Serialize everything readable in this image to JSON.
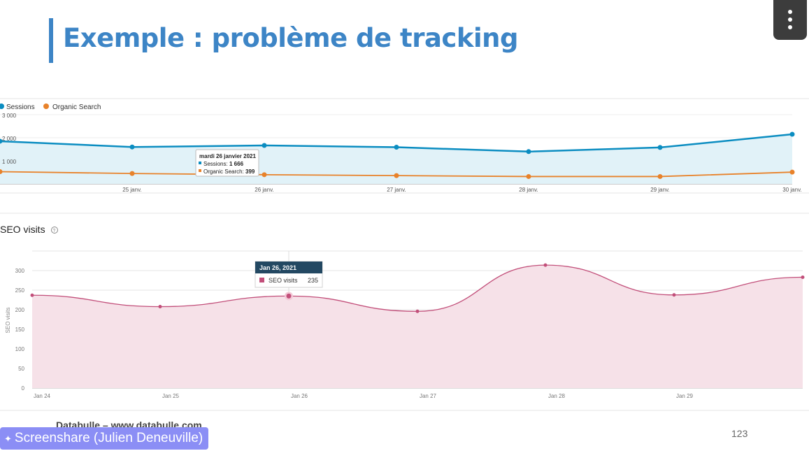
{
  "slide": {
    "title": "Exemple : problème de tracking",
    "footer": "Databulle – www.databulle.com",
    "page_number": "123"
  },
  "screenshare": {
    "label": "Screenshare (Julien Deneuville)",
    "icon": "sparkle-icon"
  },
  "colors": {
    "title": "#3d85c6",
    "sessions": "#0b8dc1",
    "organic": "#e8822a",
    "seo": "#c24f7a"
  },
  "chart_data": [
    {
      "type": "line",
      "legend": [
        "Sessions",
        "Organic Search"
      ],
      "x_tick_labels": [
        "25 janv.",
        "26 janv.",
        "27 janv.",
        "28 janv.",
        "29 janv.",
        "30 janv."
      ],
      "y_tick_labels": [
        "3 000",
        "2 000",
        "1 000"
      ],
      "ylim": [
        0,
        3000
      ],
      "series": [
        {
          "name": "Sessions",
          "x": [
            "24 janv.",
            "25 janv.",
            "26 janv.",
            "27 janv.",
            "28 janv.",
            "29 janv.",
            "30 janv."
          ],
          "values": [
            1850,
            1600,
            1666,
            1590,
            1400,
            1580,
            2150
          ],
          "area": true
        },
        {
          "name": "Organic Search",
          "x": [
            "24 janv.",
            "25 janv.",
            "26 janv.",
            "27 janv.",
            "28 janv.",
            "29 janv.",
            "30 janv."
          ],
          "values": [
            530,
            450,
            399,
            360,
            320,
            320,
            510
          ],
          "area": false
        }
      ],
      "tooltip": {
        "date": "mardi 26 janvier 2021",
        "lines": [
          {
            "label": "Sessions:",
            "value": "1 666"
          },
          {
            "label": "Organic Search:",
            "value": "399"
          }
        ]
      }
    },
    {
      "type": "area",
      "title": "SEO visits",
      "ylabel": "SEO visits",
      "x_tick_labels": [
        "Jan 24",
        "Jan 25",
        "Jan 26",
        "Jan 27",
        "Jan 28",
        "Jan 29"
      ],
      "y_tick_labels": [
        "300",
        "250",
        "200",
        "150",
        "100",
        "50",
        "0"
      ],
      "ylim": [
        0,
        350
      ],
      "series": [
        {
          "name": "SEO visits",
          "x": [
            "Jan 24",
            "Jan 25",
            "Jan 26",
            "Jan 27",
            "Jan 28",
            "Jan 29",
            "Jan 30"
          ],
          "values": [
            237,
            208,
            235,
            196,
            314,
            238,
            283
          ]
        }
      ],
      "tooltip": {
        "date": "Jan 26, 2021",
        "label": "SEO visits",
        "value": "235"
      }
    }
  ]
}
